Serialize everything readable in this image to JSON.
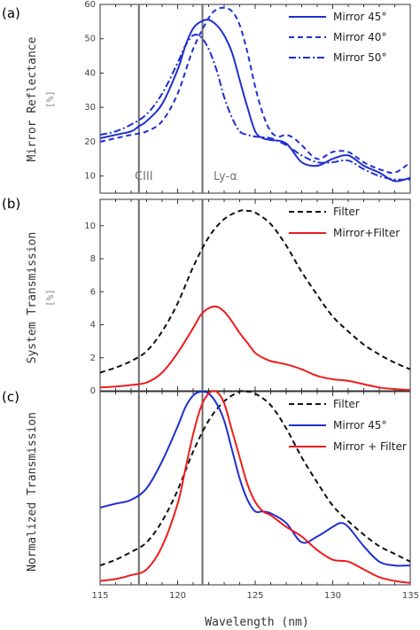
{
  "x_axis": {
    "label": "Wavelength (nm)",
    "ticks": [
      115,
      120,
      125,
      130,
      135
    ],
    "range": [
      115,
      135
    ]
  },
  "vlines": [
    {
      "x": 117.5,
      "label": "CIII"
    },
    {
      "x": 121.6,
      "label": "Ly-α"
    }
  ],
  "colors": {
    "blue": "#1f2fd0",
    "red": "#ee1c1c",
    "black": "#111111",
    "vline": "#6a6a6a"
  },
  "chart_data": [
    {
      "type": "line",
      "panel_label": "(a)",
      "ylabel": "Mirror Reflectance",
      "yunit": "[%]",
      "ylim": [
        5,
        60
      ],
      "yticks": [
        10,
        20,
        30,
        40,
        50,
        60
      ],
      "legend_position": "top-right",
      "series": [
        {
          "name": "Mirror 45°",
          "style": "solid",
          "color": "blue",
          "x": [
            115,
            116,
            117,
            117.5,
            118,
            119,
            120,
            120.5,
            121,
            121.5,
            122,
            122.5,
            123,
            123.5,
            124,
            124.5,
            125,
            125.5,
            126,
            127,
            128,
            129,
            130,
            131,
            132,
            133,
            134,
            135
          ],
          "y": [
            21,
            22,
            23,
            24.5,
            26,
            31,
            41,
            48,
            53,
            55,
            55.5,
            54,
            51,
            46,
            38,
            30,
            23,
            21,
            20.5,
            19.5,
            14,
            13,
            15,
            16,
            13,
            11,
            8.5,
            9.5
          ]
        },
        {
          "name": "Mirror 40°",
          "style": "dashed",
          "color": "blue",
          "x": [
            115,
            116,
            117,
            118,
            119,
            120,
            121,
            122,
            122.5,
            123,
            123.5,
            124,
            124.5,
            125,
            125.5,
            126,
            126.5,
            127,
            127.5,
            128,
            129,
            130,
            131,
            132,
            133,
            134,
            135
          ],
          "y": [
            20,
            21,
            22,
            23,
            26,
            34,
            47,
            56,
            58.5,
            59,
            58,
            54,
            46,
            36,
            28,
            23,
            21.5,
            22,
            21,
            19,
            15,
            17,
            17,
            14,
            12,
            11,
            14
          ]
        },
        {
          "name": "Mirror 50°",
          "style": "dashdot",
          "color": "blue",
          "x": [
            115,
            116,
            117,
            118,
            119,
            120,
            120.5,
            121,
            121.5,
            122,
            122.5,
            123,
            123.5,
            124,
            124.5,
            125,
            126,
            127,
            128,
            129,
            130,
            131,
            132,
            133,
            134,
            135
          ],
          "y": [
            22,
            23,
            25,
            28,
            34,
            43,
            48,
            51,
            50.5,
            47,
            41,
            33,
            27,
            23,
            22,
            21.5,
            21,
            19,
            16,
            14,
            14,
            14.5,
            12,
            10,
            9,
            9
          ]
        }
      ]
    },
    {
      "type": "line",
      "panel_label": "(b)",
      "ylabel": "System Transmission",
      "yunit": "[%]",
      "ylim": [
        0,
        11.6
      ],
      "yticks": [
        0,
        2,
        4,
        6,
        8,
        10
      ],
      "legend_position": "top-right",
      "series": [
        {
          "name": "Filter",
          "style": "dashed",
          "color": "black",
          "x": [
            115,
            116,
            117,
            118,
            119,
            120,
            121,
            122,
            123,
            124,
            124.5,
            125,
            126,
            127,
            128,
            129,
            130,
            131,
            132,
            133,
            134,
            135
          ],
          "y": [
            1.1,
            1.4,
            1.8,
            2.4,
            3.6,
            5.3,
            7.5,
            9.3,
            10.4,
            10.9,
            10.9,
            10.8,
            10.1,
            8.8,
            7.2,
            5.8,
            4.5,
            3.6,
            2.8,
            2.2,
            1.7,
            1.3
          ]
        },
        {
          "name": "Mirror+Filter",
          "style": "solid",
          "color": "red",
          "x": [
            115,
            116,
            117,
            118,
            119,
            120,
            121,
            121.5,
            122,
            122.5,
            123,
            123.5,
            124,
            124.5,
            125,
            125.5,
            126,
            127,
            128,
            129,
            130,
            131,
            132,
            133,
            134,
            135
          ],
          "y": [
            0.2,
            0.25,
            0.35,
            0.5,
            1.1,
            2.3,
            3.8,
            4.6,
            5.0,
            5.1,
            4.8,
            4.2,
            3.5,
            2.9,
            2.3,
            2.0,
            1.8,
            1.6,
            1.3,
            0.9,
            0.7,
            0.6,
            0.4,
            0.2,
            0.1,
            0.05
          ]
        }
      ]
    },
    {
      "type": "line",
      "panel_label": "(c)",
      "ylabel": "Normalized Transmission",
      "ylim": [
        0,
        1
      ],
      "yticks": [],
      "legend_position": "top-right",
      "series": [
        {
          "name": "Filter",
          "style": "dashed",
          "color": "black",
          "x": [
            115,
            116,
            117,
            118,
            119,
            120,
            121,
            122,
            123,
            124,
            124.5,
            125,
            126,
            127,
            128,
            129,
            130,
            131,
            132,
            133,
            134,
            135
          ],
          "y": [
            0.1,
            0.13,
            0.17,
            0.22,
            0.33,
            0.49,
            0.69,
            0.85,
            0.95,
            1.0,
            1.0,
            0.99,
            0.93,
            0.81,
            0.66,
            0.53,
            0.41,
            0.33,
            0.26,
            0.2,
            0.16,
            0.12
          ]
        },
        {
          "name": "Mirror 45°",
          "style": "solid",
          "color": "blue",
          "x": [
            115,
            116,
            117,
            118,
            119,
            120,
            120.5,
            121,
            121.5,
            122,
            122.5,
            123,
            123.5,
            124,
            124.5,
            125,
            125.5,
            126,
            127,
            128,
            129,
            130,
            130.5,
            131,
            132,
            133,
            134,
            135
          ],
          "y": [
            0.4,
            0.42,
            0.44,
            0.5,
            0.64,
            0.82,
            0.92,
            0.98,
            1.0,
            0.99,
            0.94,
            0.85,
            0.7,
            0.55,
            0.44,
            0.38,
            0.38,
            0.37,
            0.32,
            0.22,
            0.25,
            0.3,
            0.32,
            0.3,
            0.2,
            0.12,
            0.1,
            0.1
          ]
        },
        {
          "name": "Mirror + Filter",
          "style": "solid",
          "color": "red",
          "x": [
            115,
            116,
            117,
            118,
            119,
            120,
            120.5,
            121,
            121.5,
            122,
            122.5,
            123,
            123.5,
            124,
            124.5,
            125,
            125.5,
            126,
            127,
            128,
            129,
            130,
            131,
            132,
            133,
            134,
            135
          ],
          "y": [
            0.02,
            0.03,
            0.05,
            0.08,
            0.2,
            0.42,
            0.6,
            0.78,
            0.92,
            0.99,
            1.0,
            0.94,
            0.8,
            0.66,
            0.52,
            0.43,
            0.38,
            0.36,
            0.3,
            0.25,
            0.18,
            0.13,
            0.12,
            0.08,
            0.04,
            0.02,
            0.01
          ]
        }
      ]
    }
  ]
}
